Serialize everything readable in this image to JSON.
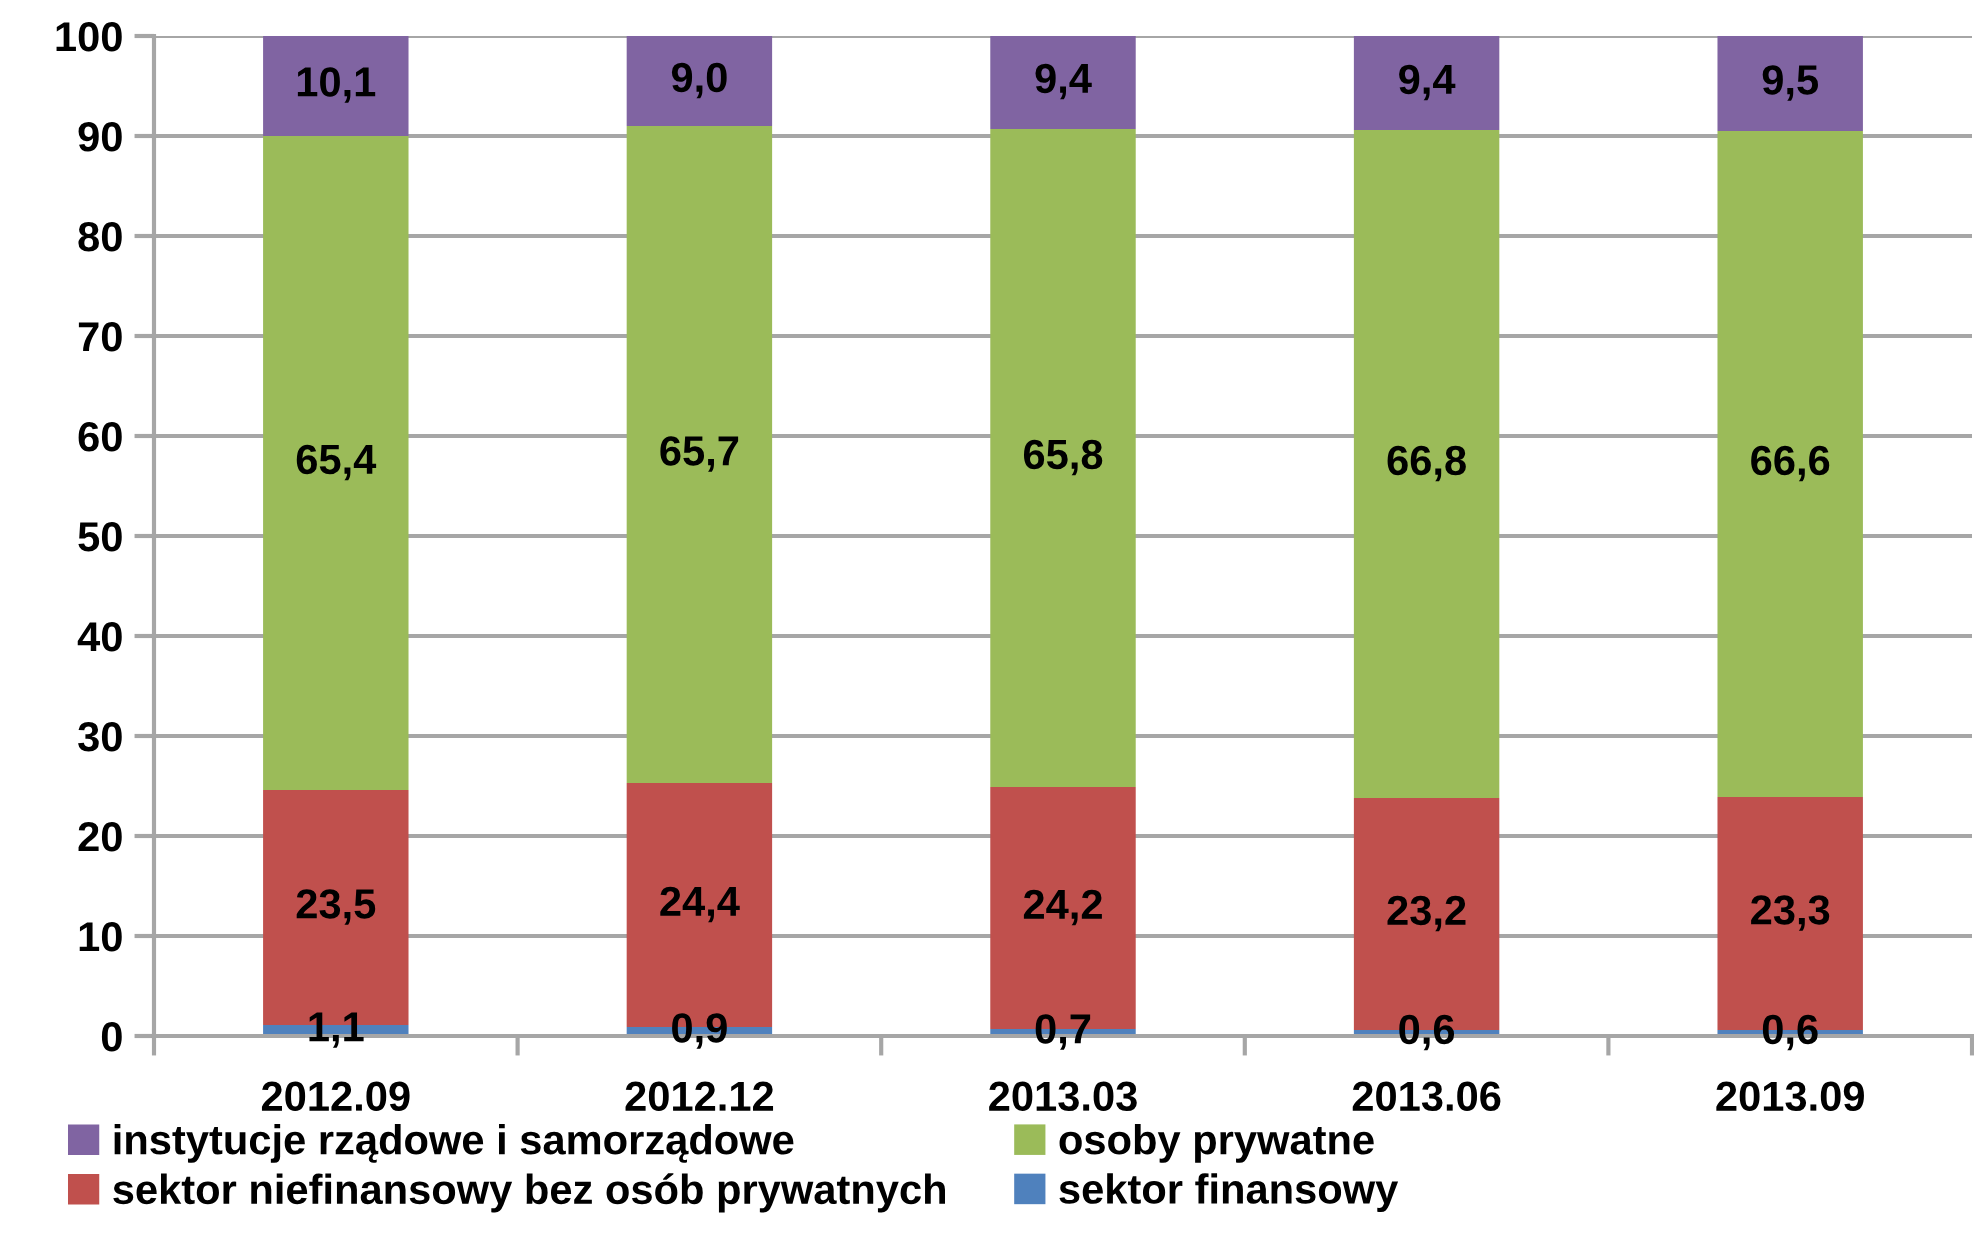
{
  "chart_data": {
    "type": "bar",
    "stacked": true,
    "categories": [
      "2012.09",
      "2012.12",
      "2013.03",
      "2013.06",
      "2013.09"
    ],
    "ylim": [
      0,
      100
    ],
    "yticks": [
      0,
      10,
      20,
      30,
      40,
      50,
      60,
      70,
      80,
      90,
      100
    ],
    "grid": "y",
    "legend": "bottom",
    "series": [
      {
        "name": "sektor finansowy",
        "color": "#4f81bd",
        "values": [
          1.1,
          0.9,
          0.7,
          0.6,
          0.6
        ],
        "value_labels": [
          "1,1",
          "0,9",
          "0,7",
          "0,6",
          "0,6"
        ]
      },
      {
        "name": "sektor niefinansowy bez osób prywatnych",
        "color": "#c0504d",
        "values": [
          23.5,
          24.4,
          24.2,
          23.2,
          23.3
        ],
        "value_labels": [
          "23,5",
          "24,4",
          "24,2",
          "23,2",
          "23,3"
        ]
      },
      {
        "name": "osoby prywatne",
        "color": "#9bbb59",
        "values": [
          65.4,
          65.7,
          65.8,
          66.8,
          66.6
        ],
        "value_labels": [
          "65,4",
          "65,7",
          "65,8",
          "66,8",
          "66,6"
        ]
      },
      {
        "name": "instytucje rządowe i samorządowe",
        "color": "#8064a2",
        "values": [
          10.1,
          9.0,
          9.4,
          9.4,
          9.5
        ],
        "value_labels": [
          "10,1",
          "9,0",
          "9,4",
          "9,4",
          "9,5"
        ]
      }
    ]
  }
}
